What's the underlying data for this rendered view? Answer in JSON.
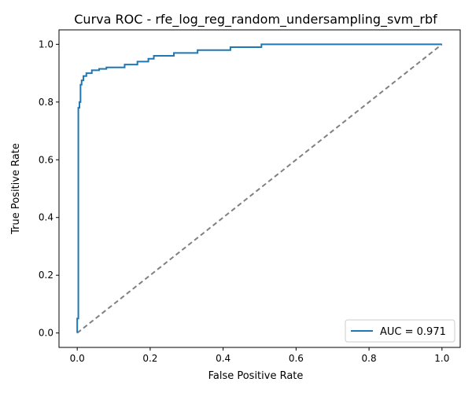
{
  "chart_data": {
    "type": "line",
    "title": "Curva ROC - rfe_log_reg_random_undersampling_svm_rbf",
    "xlabel": "False Positive Rate",
    "ylabel": "True Positive Rate",
    "xlim": [
      -0.05,
      1.05
    ],
    "ylim": [
      -0.05,
      1.05
    ],
    "xticks": [
      "0.0",
      "0.2",
      "0.4",
      "0.6",
      "0.8",
      "1.0"
    ],
    "yticks": [
      "0.0",
      "0.2",
      "0.4",
      "0.6",
      "0.8",
      "1.0"
    ],
    "grid": false,
    "legend_position": "lower-right",
    "series": [
      {
        "name": "AUC = 0.971",
        "color": "#1f77b4",
        "style": "solid",
        "x": [
          0.0,
          0.0,
          0.003,
          0.003,
          0.006,
          0.006,
          0.009,
          0.009,
          0.012,
          0.012,
          0.017,
          0.017,
          0.025,
          0.025,
          0.04,
          0.04,
          0.06,
          0.06,
          0.08,
          0.08,
          0.13,
          0.13,
          0.165,
          0.165,
          0.195,
          0.195,
          0.21,
          0.21,
          0.265,
          0.265,
          0.33,
          0.33,
          0.42,
          0.42,
          0.505,
          0.505,
          1.0
        ],
        "y": [
          0.0,
          0.05,
          0.05,
          0.78,
          0.78,
          0.8,
          0.8,
          0.86,
          0.86,
          0.875,
          0.875,
          0.89,
          0.89,
          0.9,
          0.9,
          0.91,
          0.91,
          0.915,
          0.915,
          0.92,
          0.92,
          0.93,
          0.93,
          0.94,
          0.94,
          0.95,
          0.95,
          0.96,
          0.96,
          0.97,
          0.97,
          0.98,
          0.98,
          0.99,
          0.99,
          1.0,
          1.0
        ]
      },
      {
        "name": "",
        "color": "#808080",
        "style": "dashed",
        "x": [
          0.0,
          1.0
        ],
        "y": [
          0.0,
          1.0
        ]
      }
    ]
  }
}
